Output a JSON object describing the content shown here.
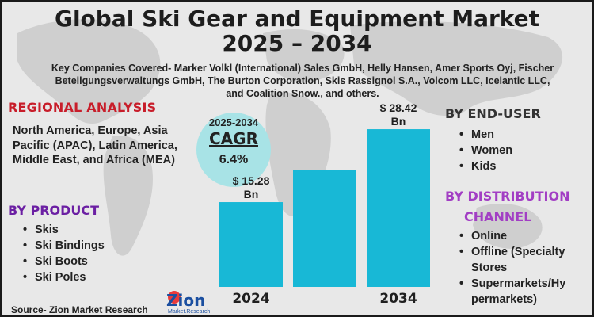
{
  "title_line1": "Global Ski Gear and Equipment Market",
  "title_line2": "2025 – 2034",
  "companies_text": "Key Companies Covered- Marker Volkl (International) Sales GmbH, Helly Hansen, Amer Sports Oyj, Fischer Beteilgungsverwaltungs GmbH, The Burton Corporation, Skis Rassignol S.A., Volcom LLC, Icelantic LLC, and Coalition Snow., and others.",
  "regional": {
    "heading": "REGIONAL ANALYSIS",
    "text": "North America, Europe, Asia Pacific (APAC), Latin America, Middle East, and Africa (MEA)"
  },
  "by_product": {
    "heading": "BY PRODUCT",
    "items": [
      "Skis",
      "Ski Bindings",
      "Ski Boots",
      "Ski Poles"
    ]
  },
  "by_end_user": {
    "heading": "BY END-USER",
    "items": [
      "Men",
      "Women",
      "Kids"
    ]
  },
  "by_distribution": {
    "heading_line1": "BY DISTRIBUTION",
    "heading_line2": "CHANNEL",
    "items": [
      "Online",
      "Offline (Specialty Stores",
      "Supermarkets/Hy permarkets)"
    ]
  },
  "cagr": {
    "period": "2025-2034",
    "label": "CAGR",
    "value": "6.4%"
  },
  "source": "Source- Zion Market Research",
  "logo": {
    "name": "Zion",
    "sub": "Market.Research"
  },
  "colors": {
    "bar": "#18b8d6",
    "cagr_circle": "#a8e3e6",
    "regional_heading": "#c81d2a",
    "product_heading": "#6b1fa3",
    "distribution_heading": "#a23ec4"
  },
  "chart_data": {
    "type": "bar",
    "categories": [
      "2024",
      "",
      "2034"
    ],
    "values": [
      15.28,
      21.0,
      28.42
    ],
    "data_labels": [
      "$ 15.28 Bn",
      "",
      "$ 28.42 Bn"
    ],
    "label_lines": [
      [
        "$ 15.28",
        "Bn"
      ],
      [],
      [
        "$ 28.42",
        "Bn"
      ]
    ],
    "ylim": [
      0,
      30
    ],
    "grid": false
  }
}
